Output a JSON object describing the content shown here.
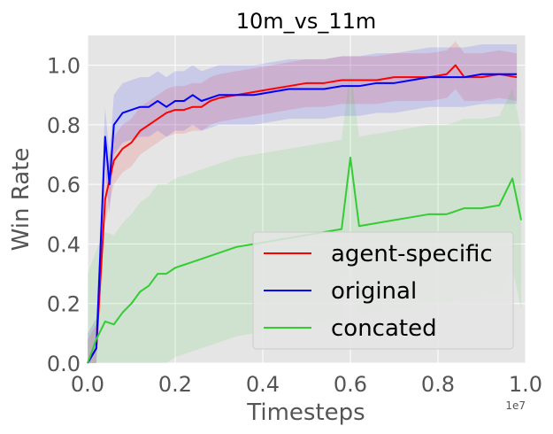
{
  "chart_data": {
    "type": "line",
    "title": "10m_vs_11m",
    "xlabel": "Timesteps",
    "ylabel": "Win Rate",
    "x_offset_label": "1e7",
    "xlim": [
      0,
      1.0
    ],
    "ylim": [
      0,
      1.1
    ],
    "xticks": [
      "0.0",
      "0.2",
      "0.4",
      "0.6",
      "0.8",
      "1.0"
    ],
    "yticks": [
      "0.0",
      "0.2",
      "0.4",
      "0.6",
      "0.8",
      "1.0"
    ],
    "grid": true,
    "legend_position": "lower-right",
    "series": [
      {
        "name": "agent-specific",
        "color": "#ff0000",
        "x": [
          0.0,
          0.02,
          0.04,
          0.06,
          0.08,
          0.1,
          0.12,
          0.14,
          0.16,
          0.18,
          0.2,
          0.22,
          0.24,
          0.26,
          0.28,
          0.3,
          0.34,
          0.38,
          0.42,
          0.46,
          0.5,
          0.54,
          0.58,
          0.62,
          0.66,
          0.7,
          0.74,
          0.78,
          0.82,
          0.84,
          0.86,
          0.9,
          0.94,
          0.98
        ],
        "y": [
          0.0,
          0.05,
          0.55,
          0.68,
          0.72,
          0.74,
          0.78,
          0.8,
          0.82,
          0.84,
          0.85,
          0.85,
          0.86,
          0.86,
          0.88,
          0.89,
          0.9,
          0.91,
          0.92,
          0.93,
          0.94,
          0.94,
          0.95,
          0.95,
          0.95,
          0.96,
          0.96,
          0.96,
          0.97,
          1.0,
          0.96,
          0.96,
          0.97,
          0.96
        ],
        "band": 0.08
      },
      {
        "name": "original",
        "color": "#0000ff",
        "x": [
          0.0,
          0.02,
          0.04,
          0.05,
          0.06,
          0.08,
          0.1,
          0.12,
          0.14,
          0.16,
          0.18,
          0.2,
          0.22,
          0.24,
          0.26,
          0.3,
          0.34,
          0.38,
          0.42,
          0.46,
          0.5,
          0.54,
          0.58,
          0.62,
          0.66,
          0.7,
          0.74,
          0.78,
          0.82,
          0.86,
          0.9,
          0.94,
          0.98
        ],
        "y": [
          0.0,
          0.05,
          0.76,
          0.6,
          0.8,
          0.84,
          0.85,
          0.86,
          0.86,
          0.88,
          0.86,
          0.88,
          0.88,
          0.9,
          0.88,
          0.9,
          0.9,
          0.9,
          0.91,
          0.92,
          0.92,
          0.92,
          0.93,
          0.93,
          0.94,
          0.94,
          0.95,
          0.96,
          0.96,
          0.96,
          0.97,
          0.97,
          0.97
        ],
        "band": 0.1
      },
      {
        "name": "concated",
        "color": "#33cc33",
        "x": [
          0.0,
          0.02,
          0.04,
          0.06,
          0.08,
          0.1,
          0.12,
          0.14,
          0.16,
          0.18,
          0.2,
          0.22,
          0.24,
          0.26,
          0.28,
          0.3,
          0.34,
          0.38,
          0.42,
          0.46,
          0.5,
          0.54,
          0.58,
          0.6,
          0.62,
          0.66,
          0.7,
          0.74,
          0.78,
          0.82,
          0.86,
          0.9,
          0.94,
          0.97,
          0.99
        ],
        "y": [
          0.0,
          0.08,
          0.14,
          0.13,
          0.17,
          0.2,
          0.24,
          0.26,
          0.3,
          0.3,
          0.32,
          0.33,
          0.34,
          0.35,
          0.36,
          0.37,
          0.39,
          0.4,
          0.41,
          0.42,
          0.43,
          0.44,
          0.45,
          0.69,
          0.46,
          0.47,
          0.48,
          0.49,
          0.5,
          0.5,
          0.52,
          0.52,
          0.53,
          0.62,
          0.48
        ],
        "band": 0.3
      }
    ]
  }
}
